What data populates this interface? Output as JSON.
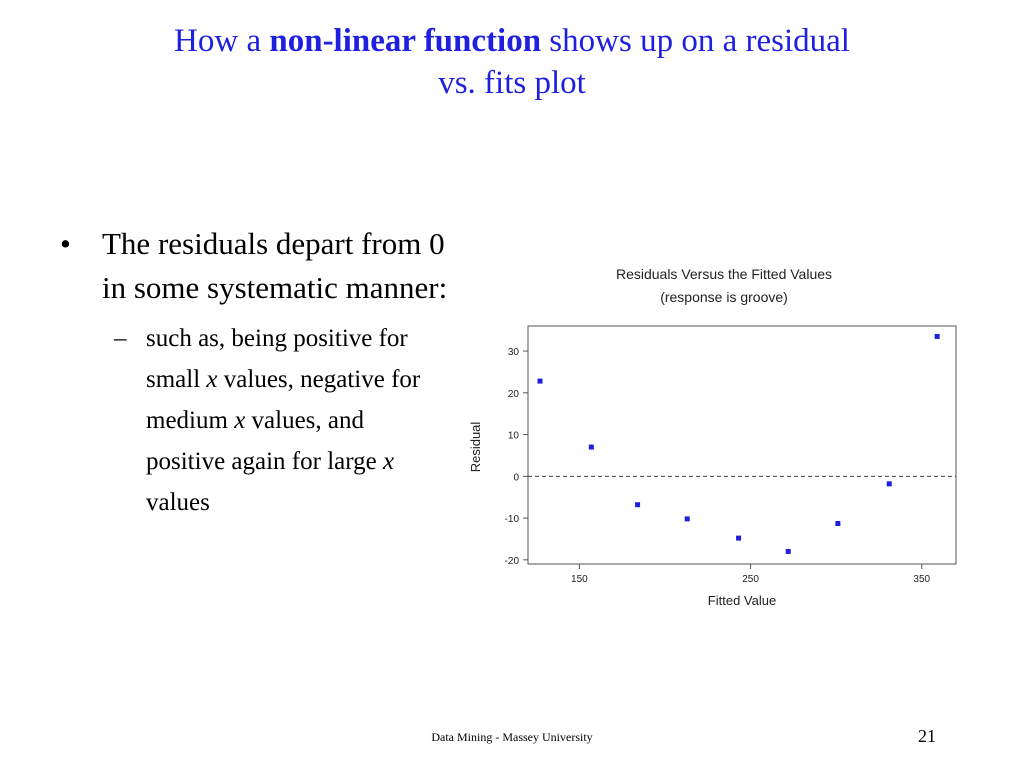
{
  "slide": {
    "title_pre": "How a ",
    "title_bold": "non-linear function",
    "title_post_1": " shows up on a residual",
    "title_post_2": "vs. fits plot",
    "bullet_main": "The residuals depart from 0 in some systematic manner:",
    "bullet_sub_1": "such as, being positive for small ",
    "bullet_sub_x1": "x",
    "bullet_sub_2": " values, negative for medium ",
    "bullet_sub_x2": "x",
    "bullet_sub_3": " values, and positive again for large ",
    "bullet_sub_x3": "x",
    "bullet_sub_4": " values",
    "footer": "Data Mining - Massey University",
    "page_number": "21"
  },
  "chart_data": {
    "type": "scatter",
    "title": "Residuals Versus the Fitted Values",
    "subtitle": "(response is groove)",
    "xlabel": "Fitted Value",
    "ylabel": "Residual",
    "xlim": [
      120,
      370
    ],
    "ylim": [
      -21,
      36
    ],
    "xticks": [
      150,
      250,
      350
    ],
    "yticks": [
      -20,
      -10,
      0,
      10,
      20,
      30
    ],
    "reference_line_y": 0,
    "grid": false,
    "point_color": "#1f1fe0",
    "points": [
      {
        "x": 127,
        "y": 22.8
      },
      {
        "x": 157,
        "y": 7.0
      },
      {
        "x": 184,
        "y": -6.8
      },
      {
        "x": 213,
        "y": -10.2
      },
      {
        "x": 243,
        "y": -14.8
      },
      {
        "x": 272,
        "y": -18.0
      },
      {
        "x": 301,
        "y": -11.3
      },
      {
        "x": 331,
        "y": -1.8
      },
      {
        "x": 359,
        "y": 33.5
      }
    ]
  }
}
